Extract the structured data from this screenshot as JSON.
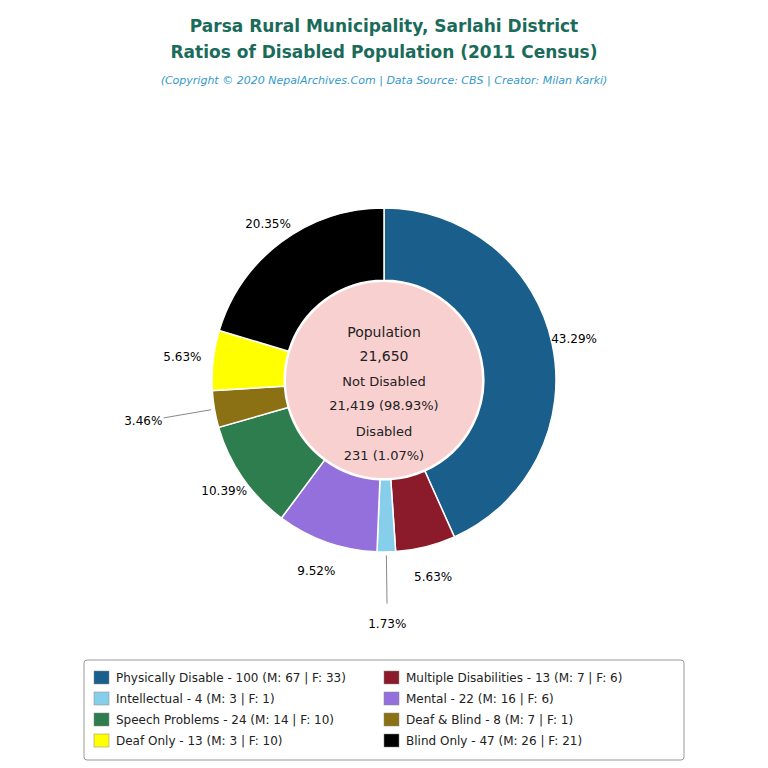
{
  "chart_data": {
    "type": "pie",
    "title": [
      "Parsa Rural Municipality, Sarlahi District",
      "Ratios of Disabled Population (2011 Census)"
    ],
    "subtitle": "(Copyright © 2020 NepalArchives.Com | Data Source: CBS | Creator: Milan Karki)",
    "annotations": [
      "Population",
      "21,650",
      "Not Disabled",
      "21,419 (98.93%)",
      "Disabled",
      "231 (1.07%)"
    ],
    "categories": [
      "Physically Disable - 100 (M: 67 | F: 33)",
      "Multiple Disabilities - 13 (M: 7 | F: 6)",
      "Intellectual - 4 (M: 3 | F: 1)",
      "Mental - 22 (M: 16 | F: 6)",
      "Speech Problems - 24 (M: 14 | F: 10)",
      "Deaf & Blind - 8 (M: 7 | F: 1)",
      "Deaf Only - 13 (M: 3 | F: 10)",
      "Blind Only - 47 (M: 26 | F: 21)"
    ],
    "values": [
      43.29,
      5.63,
      1.73,
      9.52,
      10.39,
      3.46,
      5.63,
      20.35
    ],
    "value_labels": [
      "43.29%",
      "5.63%",
      "1.73%",
      "9.52%",
      "10.39%",
      "3.46%",
      "5.63%",
      "20.35%"
    ],
    "colors": [
      "#1a5e8c",
      "#8b1a2a",
      "#87ceeb",
      "#9370db",
      "#2e7d4f",
      "#8b7014",
      "#ffff00",
      "#000000"
    ],
    "data_labels": true,
    "legend": "bottom"
  }
}
